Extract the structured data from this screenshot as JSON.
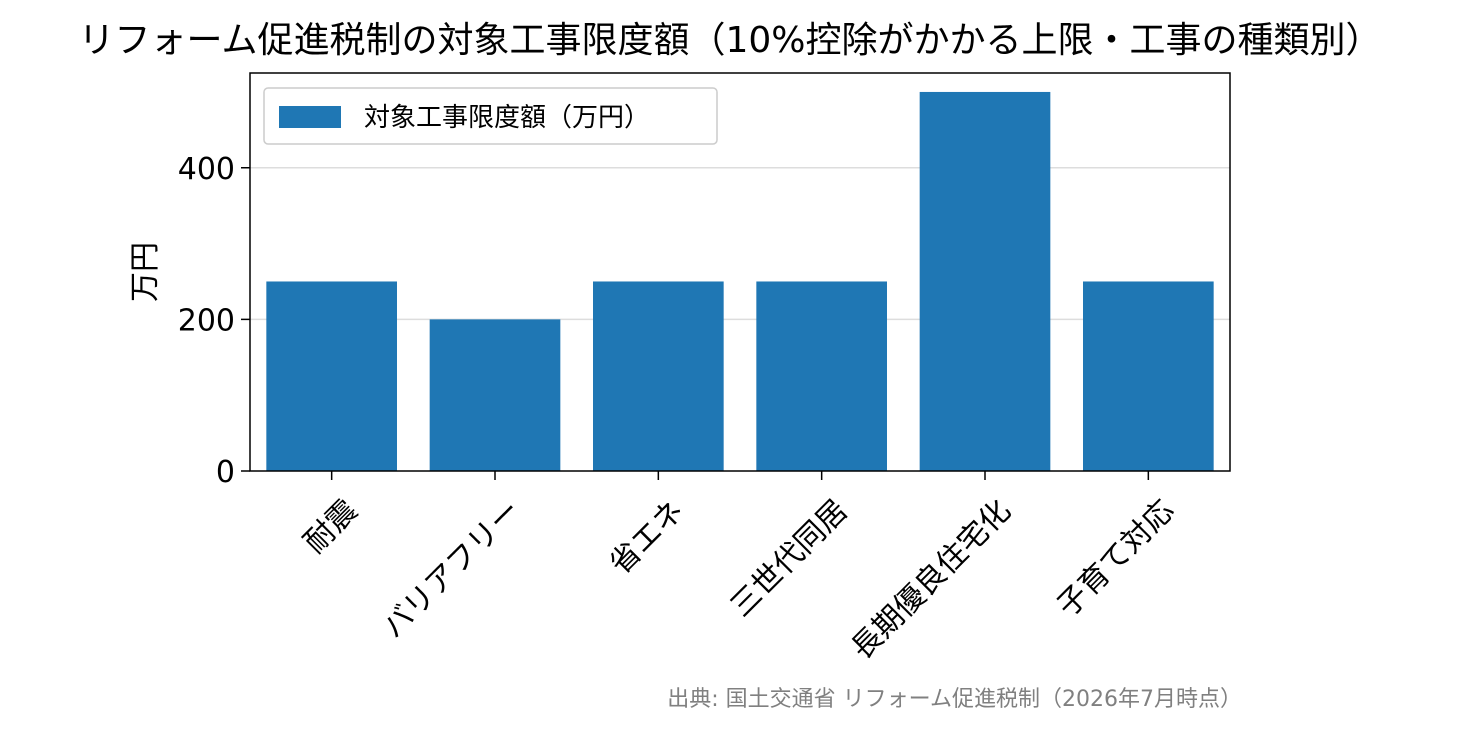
{
  "chart_data": {
    "type": "bar",
    "title": "リフォーム促進税制の対象工事限度額（10%控除がかかる上限・工事の種類別）",
    "ylabel": "万円",
    "xlabel": "",
    "categories": [
      "耐震",
      "バリアフリー",
      "省エネ",
      "三世代同居",
      "長期優良住宅化",
      "子育て対応"
    ],
    "series": [
      {
        "name": "対象工事限度額（万円）",
        "values": [
          250,
          200,
          250,
          250,
          500,
          250
        ],
        "color": "#1f77b4"
      }
    ],
    "ylim": [
      0,
      525
    ],
    "yticks": [
      0,
      200,
      400
    ],
    "grid": "horizontal",
    "legend_position": "top-left",
    "source_note": "出典: 国土交通省 リフォーム促進税制（2026年7月時点）"
  }
}
